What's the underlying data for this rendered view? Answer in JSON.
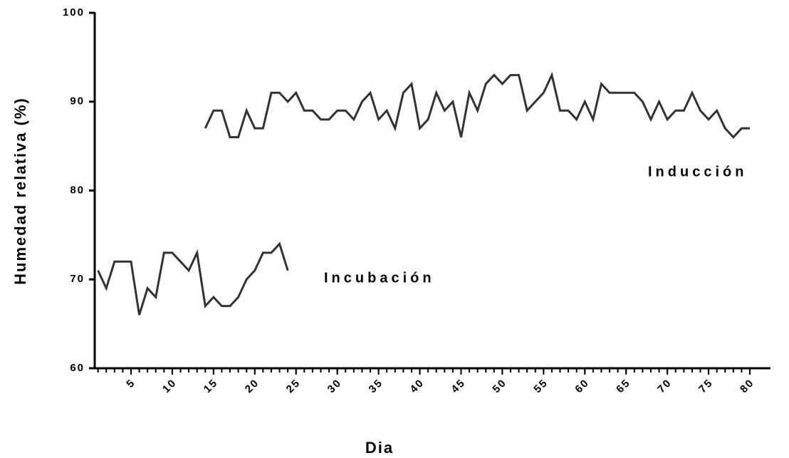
{
  "chart_data": {
    "type": "line",
    "x_label": "Dia",
    "y_label": "Humedad relativa (%)",
    "x": [
      1,
      2,
      3,
      4,
      5,
      6,
      7,
      8,
      9,
      10,
      11,
      12,
      13,
      14,
      15,
      16,
      17,
      18,
      19,
      20,
      21,
      22,
      23,
      24,
      25,
      26,
      27,
      28,
      29,
      30,
      31,
      32,
      33,
      34,
      35,
      36,
      37,
      38,
      39,
      40,
      41,
      42,
      43,
      44,
      45,
      46,
      47,
      48,
      49,
      50,
      51,
      52,
      53,
      54,
      55,
      56,
      57,
      58,
      59,
      60,
      61,
      62,
      63,
      64,
      65,
      66,
      67,
      68,
      69,
      70,
      71,
      72,
      73,
      74,
      75,
      76,
      77,
      78,
      79,
      80
    ],
    "series": [
      {
        "name": "Incubación",
        "color": "#333333",
        "values": [
          71,
          69,
          72,
          72,
          72,
          66,
          69,
          68,
          73,
          73,
          72,
          71,
          73,
          67,
          68,
          67,
          67,
          68,
          70,
          71,
          73,
          73,
          74,
          71,
          null,
          null,
          null,
          null,
          null,
          null,
          null,
          null,
          null,
          null,
          null,
          null,
          null,
          null,
          null,
          null,
          null,
          null,
          null,
          null,
          null,
          null,
          null,
          null,
          null,
          null,
          null,
          null,
          null,
          null,
          null,
          null,
          null,
          null,
          null,
          null,
          null,
          null,
          null,
          null,
          null,
          null,
          null,
          null,
          null,
          null,
          null,
          null,
          null,
          null,
          null,
          null,
          null,
          null,
          null,
          null
        ]
      },
      {
        "name": "Inducción",
        "color": "#333333",
        "values": [
          null,
          null,
          null,
          null,
          null,
          null,
          null,
          null,
          null,
          null,
          null,
          null,
          null,
          87,
          89,
          89,
          86,
          86,
          89,
          87,
          87,
          91,
          91,
          90,
          91,
          89,
          89,
          88,
          88,
          89,
          89,
          88,
          90,
          91,
          88,
          89,
          87,
          91,
          92,
          87,
          88,
          91,
          89,
          90,
          86,
          91,
          89,
          92,
          93,
          92,
          93,
          93,
          89,
          90,
          91,
          93,
          89,
          89,
          88,
          90,
          88,
          92,
          91,
          91,
          91,
          91,
          90,
          88,
          90,
          88,
          89,
          89,
          91,
          89,
          88,
          89,
          87,
          86,
          87,
          87
        ]
      }
    ],
    "xlim": [
      0.6,
      82.5
    ],
    "xticks": [
      5,
      10,
      15,
      20,
      25,
      30,
      35,
      40,
      45,
      50,
      55,
      60,
      65,
      70,
      75,
      80
    ],
    "ylim": [
      60,
      100
    ],
    "yticks": [
      60,
      70,
      80,
      90,
      100
    ],
    "grid": false
  }
}
